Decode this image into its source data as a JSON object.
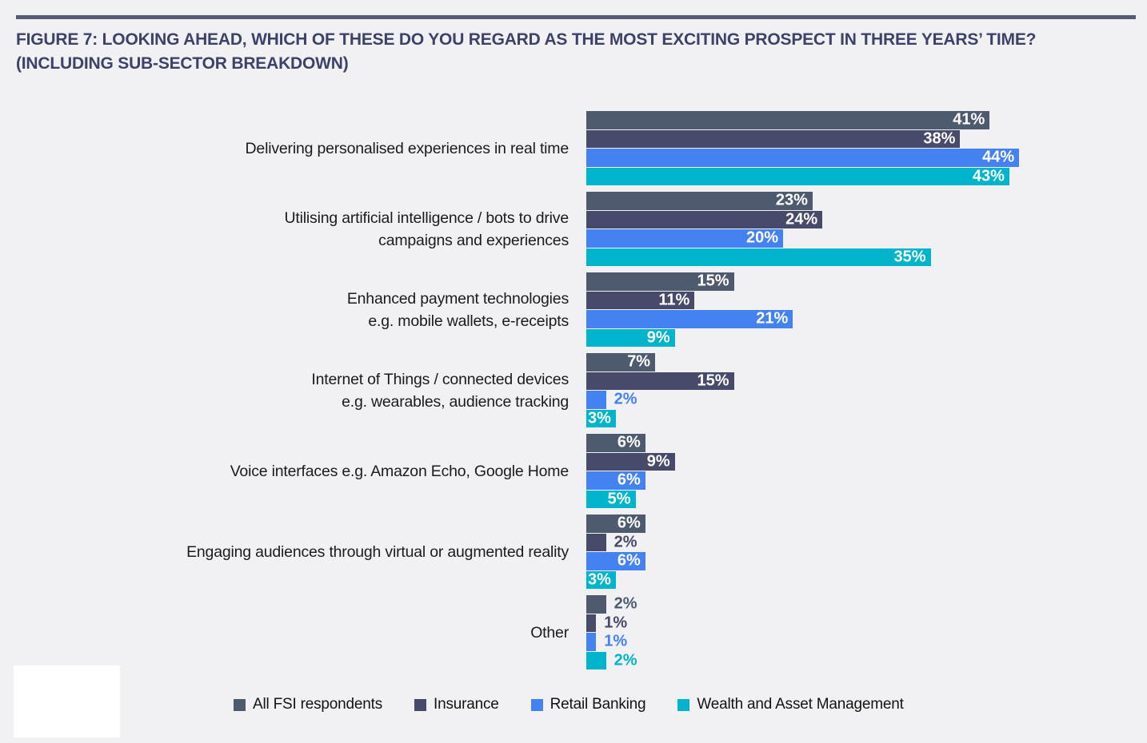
{
  "figure": {
    "title_line1": "FIGURE 7: LOOKING AHEAD, WHICH OF THESE DO YOU REGARD AS THE MOST EXCITING PROSPECT IN THREE YEARS’ TIME?",
    "title_line2": "(INCLUDING SUB-SECTOR BREAKDOWN)"
  },
  "colors": {
    "background": "#f1f1f4",
    "top_rule": "#565b75",
    "title_text": "#3d4269",
    "category_text": "#1a1b20",
    "legend_text": "#131313",
    "bar_label_inside": "#ffffff"
  },
  "chart_data": {
    "type": "bar",
    "orientation": "horizontal",
    "title": "FIGURE 7: LOOKING AHEAD, WHICH OF THESE DO YOU REGARD AS THE MOST EXCITING PROSPECT IN THREE YEARS’ TIME? (INCLUDING SUB-SECTOR BREAKDOWN)",
    "value_suffix": "%",
    "xlim": [
      0,
      50
    ],
    "grid": false,
    "legend_position": "bottom",
    "categories": [
      "Delivering personalised experiences in real time",
      "Utilising artificial intelligence / bots to drive campaigns and experiences",
      "Enhanced payment technologies e.g. mobile wallets, e-receipts",
      "Internet of Things / connected devices e.g. wearables, audience tracking",
      "Voice interfaces e.g. Amazon Echo, Google Home",
      "Engaging audiences through virtual or augmented reality",
      "Other"
    ],
    "category_lines": [
      [
        "Delivering personalised experiences in real time"
      ],
      [
        "Utilising artificial intelligence / bots to drive",
        "campaigns and experiences"
      ],
      [
        "Enhanced payment technologies",
        "e.g. mobile wallets, e-receipts"
      ],
      [
        "Internet of Things / connected devices",
        "e.g. wearables, audience tracking"
      ],
      [
        "Voice interfaces e.g. Amazon Echo, Google Home"
      ],
      [
        "Engaging audiences through virtual or augmented reality"
      ],
      [
        "Other"
      ]
    ],
    "series": [
      {
        "name": "All FSI respondents",
        "color": "#4e5b6f",
        "values": [
          41,
          23,
          15,
          7,
          6,
          6,
          2
        ]
      },
      {
        "name": "Insurance",
        "color": "#484a6a",
        "values": [
          38,
          24,
          11,
          15,
          9,
          2,
          1
        ]
      },
      {
        "name": "Retail Banking",
        "color": "#4481f1",
        "values": [
          44,
          20,
          21,
          2,
          6,
          6,
          1
        ]
      },
      {
        "name": "Wealth and Asset Management",
        "color": "#00b4cb",
        "values": [
          43,
          35,
          9,
          3,
          5,
          3,
          2
        ]
      }
    ]
  }
}
